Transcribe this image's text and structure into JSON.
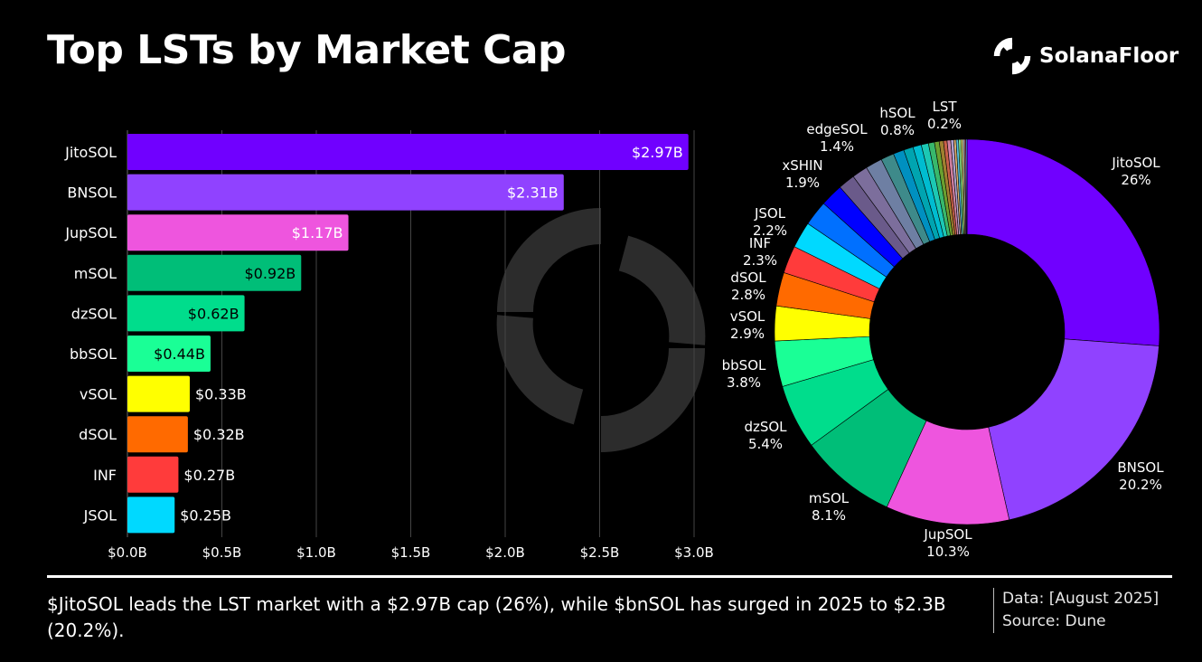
{
  "header": {
    "title": "Top LSTs by Market Cap",
    "brand": "SolanaFloor"
  },
  "chart_data": [
    {
      "type": "bar",
      "orientation": "horizontal",
      "categories": [
        "JitoSOL",
        "BNSOL",
        "JupSOL",
        "mSOL",
        "dzSOL",
        "bbSOL",
        "vSOL",
        "dSOL",
        "INF",
        "JSOL"
      ],
      "values": [
        2.97,
        2.31,
        1.17,
        0.92,
        0.62,
        0.44,
        0.33,
        0.32,
        0.27,
        0.25
      ],
      "data_labels": [
        "$2.97B",
        "$2.31B",
        "$1.17B",
        "$0.92B",
        "$0.62B",
        "$0.44B",
        "$0.33B",
        "$0.32B",
        "$0.27B",
        "$0.25B"
      ],
      "colors": [
        "#7000ff",
        "#9042ff",
        "#ee55de",
        "#00be78",
        "#00dd8c",
        "#1aff96",
        "#ffff00",
        "#ff6a00",
        "#ff3b3b",
        "#00d9ff"
      ],
      "xlim": [
        0,
        3.0
      ],
      "xticks": [
        0,
        0.5,
        1.0,
        1.5,
        2.0,
        2.5,
        3.0
      ],
      "xtick_labels": [
        "$0.0B",
        "$0.5B",
        "$1.0B",
        "$1.5B",
        "$2.0B",
        "$2.5B",
        "$3.0B"
      ],
      "grid": "vertical"
    },
    {
      "type": "pie",
      "style": "donut",
      "slices": [
        {
          "label": "JitoSOL",
          "value": 26,
          "text": "26%",
          "color": "#7000ff"
        },
        {
          "label": "BNSOL",
          "value": 20.2,
          "text": "20.2%",
          "color": "#9042ff"
        },
        {
          "label": "JupSOL",
          "value": 10.3,
          "text": "10.3%",
          "color": "#ee55de"
        },
        {
          "label": "mSOL",
          "value": 8.1,
          "text": "8.1%",
          "color": "#00be78"
        },
        {
          "label": "dzSOL",
          "value": 5.4,
          "text": "5.4%",
          "color": "#00dd8c"
        },
        {
          "label": "bbSOL",
          "value": 3.8,
          "text": "3.8%",
          "color": "#1aff96"
        },
        {
          "label": "vSOL",
          "value": 2.9,
          "text": "2.9%",
          "color": "#ffff00"
        },
        {
          "label": "dSOL",
          "value": 2.8,
          "text": "2.8%",
          "color": "#ff6a00"
        },
        {
          "label": "INF",
          "value": 2.3,
          "text": "2.3%",
          "color": "#ff3b3b"
        },
        {
          "label": "JSOL",
          "value": 2.2,
          "text": "2.2%",
          "color": "#00d9ff"
        },
        {
          "label": "",
          "value": 2.1,
          "text": "",
          "color": "#0070ff"
        },
        {
          "label": "xSHIN",
          "value": 1.9,
          "text": "1.9%",
          "color": "#0000ff"
        },
        {
          "label": "",
          "value": 1.4,
          "text": "",
          "color": "#6a5a8a"
        },
        {
          "label": "",
          "value": 1.3,
          "text": "",
          "color": "#7c6e9c"
        },
        {
          "label": "edgeSOL",
          "value": 1.4,
          "text": "1.4%",
          "color": "#6e7fa3"
        },
        {
          "label": "",
          "value": 1.1,
          "text": "",
          "color": "#3e8a8a"
        },
        {
          "label": "",
          "value": 0.9,
          "text": "",
          "color": "#0090c0"
        },
        {
          "label": "hSOL",
          "value": 0.8,
          "text": "0.8%",
          "color": "#00a4b0"
        },
        {
          "label": "",
          "value": 0.7,
          "text": "",
          "color": "#00bcd0"
        },
        {
          "label": "",
          "value": 0.6,
          "text": "",
          "color": "#1cc8b4"
        },
        {
          "label": "",
          "value": 0.5,
          "text": "",
          "color": "#38b86c"
        },
        {
          "label": "",
          "value": 0.4,
          "text": "",
          "color": "#6aa030"
        },
        {
          "label": "",
          "value": 0.35,
          "text": "",
          "color": "#a08030"
        },
        {
          "label": "",
          "value": 0.3,
          "text": "",
          "color": "#c86048"
        },
        {
          "label": "",
          "value": 0.3,
          "text": "",
          "color": "#d080a0"
        },
        {
          "label": "",
          "value": 0.25,
          "text": "",
          "color": "#b0a0d0"
        },
        {
          "label": "",
          "value": 0.2,
          "text": "",
          "color": "#e0b070"
        },
        {
          "label": "",
          "value": 0.2,
          "text": "",
          "color": "#50c0e0"
        },
        {
          "label": "LST",
          "value": 0.2,
          "text": "0.2%",
          "color": "#80e080"
        },
        {
          "label": "",
          "value": 0.15,
          "text": "",
          "color": "#f0f080"
        },
        {
          "label": "",
          "value": 0.15,
          "text": "",
          "color": "#c0c0c0"
        },
        {
          "label": "",
          "value": 0.1,
          "text": "",
          "color": "#ff80c0"
        },
        {
          "label": "",
          "value": 0.1,
          "text": "",
          "color": "#40a0ff"
        }
      ]
    }
  ],
  "footer": {
    "caption": "$JitoSOL leads the LST market with a $2.97B cap (26%), while $bnSOL has surged in 2025 to $2.3B (20.2%).",
    "data_date": "Data: [August 2025]",
    "source": "Source: Dune"
  }
}
